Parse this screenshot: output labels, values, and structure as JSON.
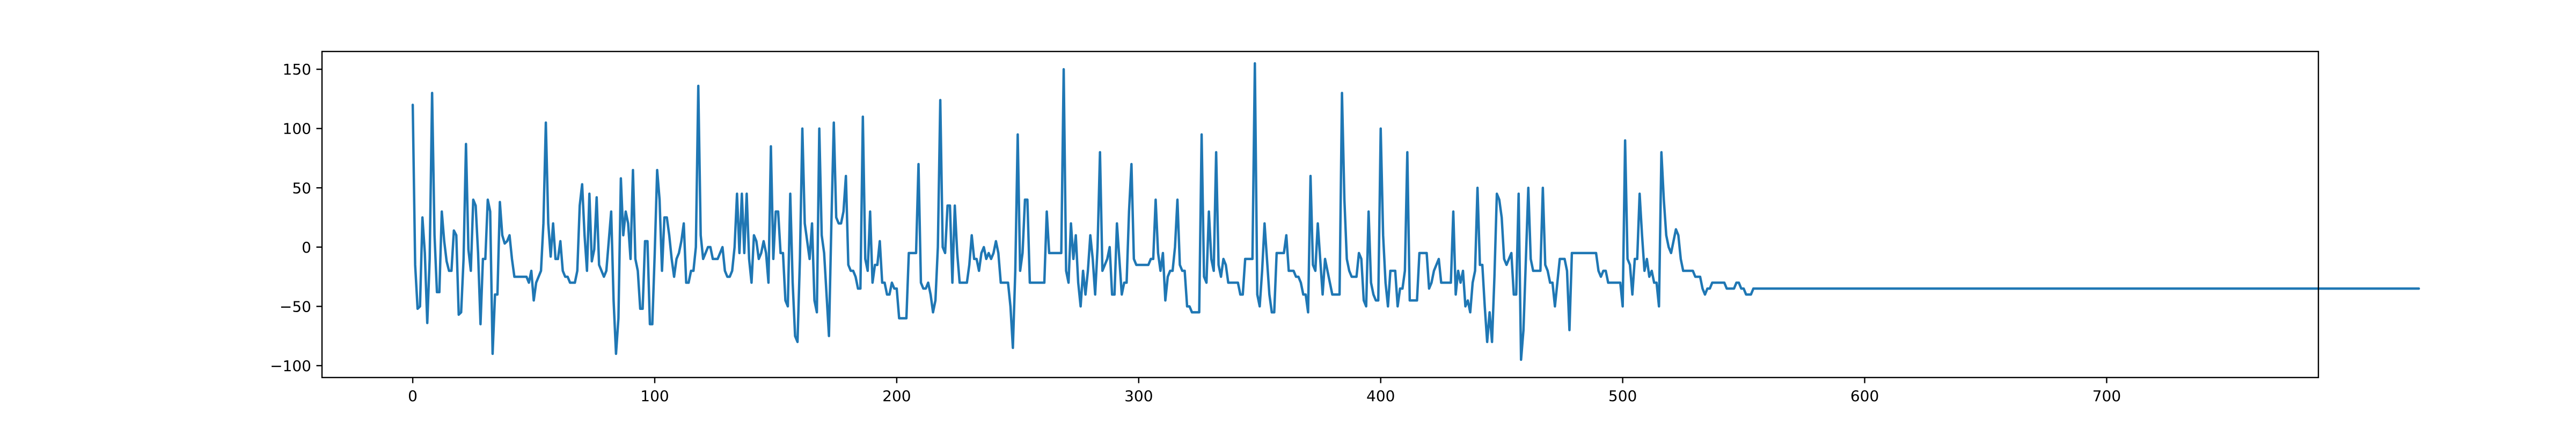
{
  "chart_data": {
    "type": "line",
    "title": "",
    "xlabel": "",
    "ylabel": "",
    "xlim": [
      -37.5,
      787.5
    ],
    "ylim": [
      -110,
      165
    ],
    "grid": false,
    "legend": "none",
    "x_ticks": [
      0,
      100,
      200,
      300,
      400,
      500,
      600,
      700
    ],
    "x_tick_labels": [
      "0",
      "100",
      "200",
      "300",
      "400",
      "500",
      "600",
      "700"
    ],
    "y_ticks": [
      -100,
      -50,
      0,
      50,
      100,
      150
    ],
    "y_tick_labels": [
      "−100",
      "−50",
      "0",
      "50",
      "100",
      "150"
    ],
    "series": [
      {
        "color": "#1f77b4",
        "x_start": 0,
        "x_step": 1,
        "values": [
          120,
          -15,
          -52,
          -50,
          25,
          -5,
          -64,
          -10,
          130,
          10,
          -38,
          -38,
          30,
          5,
          -12,
          -20,
          -20,
          14,
          10,
          -57,
          -55,
          -10,
          87,
          -2,
          -20,
          40,
          35,
          -5,
          -65,
          -10,
          -10,
          40,
          30,
          -90,
          -40,
          -40,
          38,
          10,
          3,
          5,
          10,
          -10,
          -25,
          -25,
          -25,
          -25,
          -25,
          -25,
          -30,
          -20,
          -45,
          -30,
          -25,
          -20,
          20,
          105,
          20,
          -8,
          20,
          -10,
          -10,
          5,
          -20,
          -25,
          -25,
          -30,
          -30,
          -30,
          -20,
          35,
          53,
          10,
          -20,
          45,
          -12,
          -2,
          42,
          -15,
          -20,
          -25,
          -20,
          5,
          30,
          -45,
          -90,
          -60,
          58,
          10,
          30,
          20,
          -10,
          65,
          -10,
          -20,
          -52,
          -52,
          5,
          5,
          -65,
          -65,
          -5,
          65,
          40,
          -20,
          25,
          25,
          10,
          -10,
          -25,
          -10,
          -5,
          5,
          20,
          -30,
          -30,
          -20,
          -20,
          0,
          136,
          10,
          -10,
          -5,
          0,
          0,
          -10,
          -10,
          -10,
          -5,
          0,
          -20,
          -25,
          -25,
          -20,
          0,
          45,
          -5,
          45,
          -5,
          45,
          -10,
          -30,
          10,
          5,
          -10,
          -5,
          5,
          -5,
          -30,
          85,
          -10,
          30,
          30,
          -5,
          -5,
          -45,
          -50,
          45,
          -30,
          -75,
          -80,
          -10,
          100,
          20,
          5,
          -10,
          20,
          -45,
          -55,
          100,
          10,
          -5,
          -40,
          -75,
          20,
          105,
          25,
          20,
          20,
          30,
          60,
          -15,
          -20,
          -20,
          -25,
          -35,
          -35,
          110,
          -10,
          -20,
          30,
          -30,
          -15,
          -15,
          5,
          -30,
          -30,
          -40,
          -40,
          -30,
          -35,
          -35,
          -60,
          -60,
          -60,
          -60,
          -5,
          -5,
          -5,
          -5,
          70,
          -30,
          -35,
          -35,
          -30,
          -40,
          -55,
          -45,
          0,
          124,
          0,
          -5,
          35,
          35,
          -30,
          35,
          -5,
          -30,
          -30,
          -30,
          -30,
          -15,
          10,
          -10,
          -10,
          -20,
          -5,
          0,
          -10,
          -5,
          -10,
          -5,
          5,
          -5,
          -30,
          -30,
          -30,
          -30,
          -50,
          -85,
          -20,
          95,
          -20,
          -5,
          40,
          40,
          -30,
          -30,
          -30,
          -30,
          -30,
          -30,
          -30,
          30,
          -5,
          -5,
          -5,
          -5,
          -5,
          -5,
          150,
          -20,
          -30,
          20,
          -10,
          10,
          -30,
          -50,
          -20,
          -40,
          -20,
          10,
          -10,
          -40,
          0,
          80,
          -20,
          -15,
          -10,
          0,
          -40,
          -40,
          20,
          -10,
          -40,
          -30,
          -30,
          30,
          70,
          -10,
          -15,
          -15,
          -15,
          -15,
          -15,
          -15,
          -10,
          -10,
          40,
          -5,
          -20,
          -5,
          -45,
          -25,
          -20,
          -20,
          0,
          40,
          -15,
          -20,
          -20,
          -50,
          -50,
          -55,
          -55,
          -55,
          -55,
          95,
          -25,
          -30,
          30,
          -10,
          -20,
          80,
          -15,
          -25,
          -10,
          -15,
          -30,
          -30,
          -30,
          -30,
          -30,
          -40,
          -40,
          -10,
          -10,
          -10,
          -10,
          155,
          -40,
          -50,
          -20,
          20,
          -10,
          -40,
          -55,
          -55,
          -5,
          -5,
          -5,
          -5,
          10,
          -20,
          -20,
          -20,
          -25,
          -25,
          -30,
          -40,
          -40,
          -55,
          60,
          -15,
          -20,
          20,
          -10,
          -40,
          -10,
          -20,
          -30,
          -40,
          -40,
          -40,
          -40,
          130,
          40,
          -10,
          -20,
          -25,
          -25,
          -25,
          -5,
          -10,
          -45,
          -50,
          30,
          -30,
          -40,
          -45,
          -45,
          100,
          10,
          -30,
          -50,
          -20,
          -20,
          -20,
          -50,
          -35,
          -35,
          -20,
          80,
          -45,
          -45,
          -45,
          -45,
          -5,
          -5,
          -5,
          -5,
          -35,
          -30,
          -20,
          -15,
          -10,
          -30,
          -30,
          -30,
          -30,
          -30,
          30,
          -40,
          -20,
          -30,
          -20,
          -50,
          -45,
          -55,
          -30,
          -20,
          50,
          -15,
          -15,
          -50,
          -80,
          -55,
          -80,
          -25,
          45,
          40,
          25,
          -10,
          -15,
          -10,
          -5,
          -40,
          -40,
          45,
          -95,
          -70,
          -10,
          50,
          -10,
          -20,
          -20,
          -20,
          -20,
          50,
          -15,
          -20,
          -30,
          -30,
          -50,
          -30,
          -10,
          -10,
          -10,
          -20,
          -70,
          -5,
          -5,
          -5,
          -5,
          -5,
          -5,
          -5,
          -5,
          -5,
          -5,
          -5,
          -20,
          -25,
          -20,
          -20,
          -30,
          -30,
          -30,
          -30,
          -30,
          -30,
          -50,
          90,
          -10,
          -15,
          -40,
          -10,
          -10,
          45,
          10,
          -20,
          -10,
          -25,
          -20,
          -30,
          -30,
          -50,
          80,
          40,
          10,
          0,
          -5,
          5,
          15,
          10,
          -10,
          -20,
          -20,
          -20,
          -20,
          -20,
          -25,
          -25,
          -25,
          -35,
          -40,
          -35,
          -35,
          -30,
          -30,
          -30,
          -30,
          -30,
          -30,
          -35,
          -35,
          -35,
          -35,
          -30,
          -30,
          -35,
          -35,
          -40,
          -40,
          -40,
          -35,
          -35,
          -35,
          -35,
          -35,
          -35,
          -35,
          -35,
          -35,
          -35,
          -35,
          -35,
          -35,
          -35,
          -35,
          -35,
          -35,
          -35,
          -35,
          -35,
          -35,
          -35,
          -35,
          -35,
          -35,
          -35,
          -35,
          -35,
          -35,
          -35,
          -35,
          -35,
          -35,
          -35,
          -35,
          -35,
          -35,
          -35,
          -35,
          -35,
          -35,
          -35,
          -35,
          -35,
          -35,
          -35,
          -35,
          -35,
          -35,
          -35,
          -35,
          -35,
          -35,
          -35,
          -35,
          -35,
          -35,
          -35,
          -35,
          -35,
          -35,
          -35,
          -35,
          -35,
          -35,
          -35,
          -35,
          -35,
          -35,
          -35,
          -35,
          -35,
          -35,
          -35,
          -35,
          -35,
          -35,
          -35,
          -35,
          -35,
          -35,
          -35,
          -35,
          -35,
          -35,
          -35,
          -35,
          -35,
          -35,
          -35,
          -35,
          -35,
          -35,
          -35,
          -35,
          -35,
          -35,
          -35,
          -35,
          -35,
          -35,
          -35,
          -35,
          -35,
          -35,
          -35,
          -35,
          -35,
          -35,
          -35,
          -35,
          -35,
          -35,
          -35,
          -35,
          -35,
          -35,
          -35,
          -35,
          -35,
          -35,
          -35,
          -35,
          -35,
          -35,
          -35,
          -35,
          -35,
          -35,
          -35,
          -35,
          -35,
          -35,
          -35,
          -35,
          -35,
          -35,
          -35,
          -35,
          -35,
          -35,
          -35,
          -35,
          -35,
          -35,
          -35,
          -35,
          -35,
          -35,
          -35,
          -35,
          -35,
          -35,
          -35,
          -35,
          -35,
          -35,
          -35,
          -35,
          -35,
          -35,
          -35,
          -35,
          -35,
          -35,
          -35,
          -35,
          -35,
          -35,
          -35,
          -35,
          -35,
          -35,
          -35,
          -35,
          -35,
          -35,
          -35,
          -35,
          -35,
          -35,
          -35,
          -35,
          -35,
          -35,
          -35,
          -35,
          -35,
          -35,
          -35,
          -35,
          -35,
          -35,
          -35,
          -35,
          -35,
          -35,
          -35,
          -35,
          -35,
          -35,
          -35,
          -35,
          -35,
          -35,
          -35,
          -35,
          -35,
          -35,
          -35,
          -35,
          -35,
          -35,
          -35,
          -35,
          -35,
          -35,
          -35,
          -35,
          -35,
          -35,
          -35,
          -35,
          -35,
          -35,
          -35,
          -35,
          -35,
          -35,
          -35,
          -35,
          -35,
          -35,
          -35,
          -35,
          -35,
          -35,
          -35,
          -35,
          -35,
          -35,
          -35,
          -35,
          -35,
          -35,
          -35,
          -35,
          -35,
          -35,
          -35,
          -35,
          -35,
          -35,
          -35,
          -35,
          -35,
          -35,
          -35,
          -35,
          -35,
          -35,
          -35,
          -35,
          -35,
          -35,
          -35,
          -35,
          -35,
          -35,
          -35,
          -35,
          -35,
          -35,
          -35,
          -35,
          -35
        ]
      }
    ]
  }
}
